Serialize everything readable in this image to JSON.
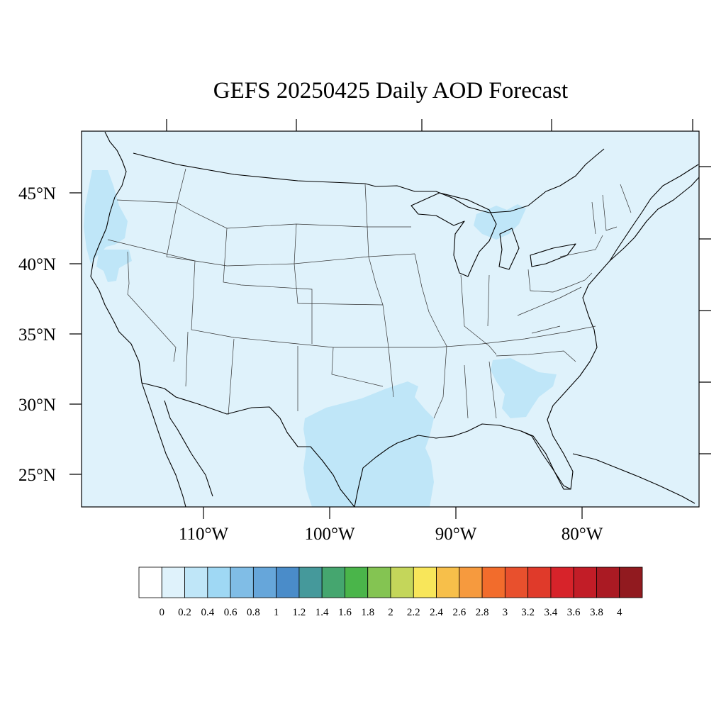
{
  "title": "GEFS 20250425 Daily AOD Forecast",
  "map": {
    "background_color": "#dff2fb",
    "lat_labels": [
      "45°N",
      "40°N",
      "35°N",
      "30°N",
      "25°N"
    ],
    "lon_labels": [
      "110°W",
      "100°W",
      "90°W",
      "80°W"
    ],
    "plume_color": "#bfe6f8",
    "plume_regions": [
      "Pacific Northwest coast",
      "South Texas / Gulf coast",
      "Georgia",
      "Lake Michigan / Lake Huron"
    ]
  },
  "colorbar": {
    "colors": [
      "#ffffff",
      "#dff2fb",
      "#bfe6f8",
      "#9fd8f4",
      "#80bde6",
      "#66a6da",
      "#4a8cc9",
      "#45999b",
      "#45a66f",
      "#4ab54a",
      "#84c452",
      "#c4d65a",
      "#f8e65a",
      "#f7bf4a",
      "#f69a3e",
      "#f26c2c",
      "#e8502d",
      "#e03a2a",
      "#d7232a",
      "#c21d27",
      "#aa1a23",
      "#911a1f"
    ],
    "labels": [
      "0",
      "0.2",
      "0.4",
      "0.6",
      "0.8",
      "1",
      "1.2",
      "1.4",
      "1.6",
      "1.8",
      "2",
      "2.2",
      "2.4",
      "2.6",
      "2.8",
      "3",
      "3.2",
      "3.4",
      "3.6",
      "3.8",
      "4"
    ]
  }
}
